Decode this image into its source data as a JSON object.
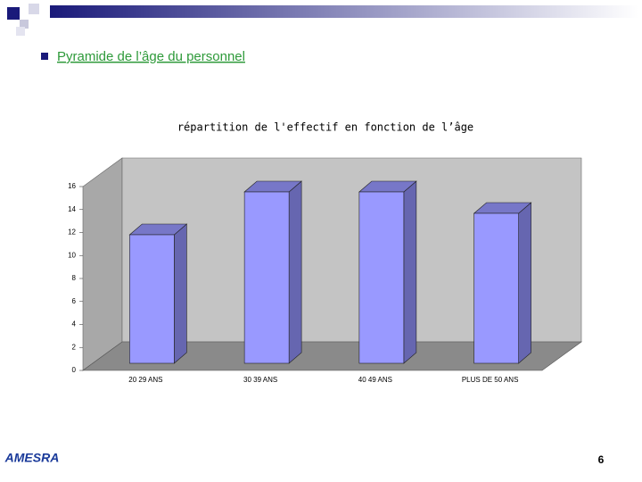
{
  "heading": "Pyramide de l’âge du personnel",
  "logo": "AMESRA",
  "page_number": 6,
  "chart_data": {
    "type": "bar3d",
    "title": "répartition de l'effectif en fonction de l’âge",
    "categories": [
      "20 29 ANS",
      "30 39 ANS",
      "40 49 ANS",
      "PLUS DE 50 ANS"
    ],
    "values": [
      12,
      16,
      16,
      14
    ],
    "color": "#9999ff",
    "ylim": [
      0,
      16
    ],
    "yticks": [
      0,
      2,
      4,
      6,
      8,
      10,
      12,
      14,
      16
    ],
    "grid": false
  }
}
